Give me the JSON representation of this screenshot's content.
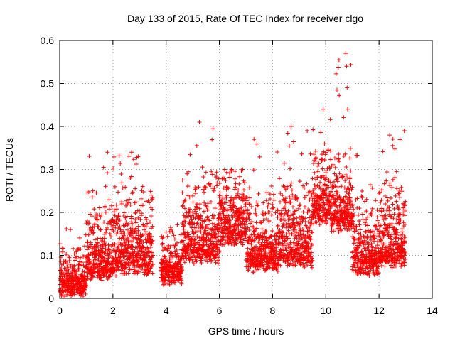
{
  "chart_data": {
    "type": "scatter",
    "title": "Day 133 of 2015, Rate Of TEC Index for receiver clgo",
    "xlabel": "GPS time / hours",
    "ylabel": "ROTI / TECUs",
    "xlim": [
      0,
      14
    ],
    "ylim": [
      0,
      0.6
    ],
    "x_ticks": [
      "0",
      "2",
      "4",
      "6",
      "8",
      "10",
      "12",
      "14"
    ],
    "y_ticks": [
      "0",
      "0.1",
      "0.2",
      "0.3",
      "0.4",
      "0.5",
      "0.6"
    ],
    "grid": true,
    "marker": "+",
    "series_color": "#ff0000",
    "data_segments": [
      {
        "x_start": 0.0,
        "x_end": 1.0,
        "base": 0.03,
        "spread": 0.06,
        "peak": 0.17
      },
      {
        "x_start": 1.0,
        "x_end": 2.0,
        "base": 0.07,
        "spread": 0.1,
        "peak": 0.34
      },
      {
        "x_start": 2.0,
        "x_end": 3.5,
        "base": 0.08,
        "spread": 0.12,
        "peak": 0.34
      },
      {
        "x_start": 3.8,
        "x_end": 4.6,
        "base": 0.06,
        "spread": 0.06,
        "peak": 0.19
      },
      {
        "x_start": 4.6,
        "x_end": 6.0,
        "base": 0.11,
        "spread": 0.12,
        "peak": 0.41
      },
      {
        "x_start": 6.0,
        "x_end": 7.0,
        "base": 0.15,
        "spread": 0.1,
        "peak": 0.3
      },
      {
        "x_start": 7.0,
        "x_end": 8.2,
        "base": 0.09,
        "spread": 0.1,
        "peak": 0.37
      },
      {
        "x_start": 8.2,
        "x_end": 9.5,
        "base": 0.1,
        "spread": 0.12,
        "peak": 0.4
      },
      {
        "x_start": 9.5,
        "x_end": 10.2,
        "base": 0.2,
        "spread": 0.1,
        "peak": 0.44
      },
      {
        "x_start": 10.2,
        "x_end": 11.0,
        "base": 0.18,
        "spread": 0.1,
        "peak": 0.57
      },
      {
        "x_start": 11.0,
        "x_end": 12.0,
        "base": 0.08,
        "spread": 0.1,
        "peak": 0.34
      },
      {
        "x_start": 12.0,
        "x_end": 13.0,
        "base": 0.1,
        "spread": 0.12,
        "peak": 0.39
      }
    ],
    "notable_points": [
      {
        "x": 10.75,
        "y": 0.57
      },
      {
        "x": 10.78,
        "y": 0.54
      },
      {
        "x": 10.8,
        "y": 0.49
      },
      {
        "x": 10.82,
        "y": 0.44
      },
      {
        "x": 9.9,
        "y": 0.44
      },
      {
        "x": 5.25,
        "y": 0.41
      },
      {
        "x": 8.7,
        "y": 0.4
      },
      {
        "x": 9.3,
        "y": 0.39
      },
      {
        "x": 12.95,
        "y": 0.39
      },
      {
        "x": 12.4,
        "y": 0.38
      },
      {
        "x": 7.3,
        "y": 0.37
      },
      {
        "x": 1.8,
        "y": 0.34
      },
      {
        "x": 2.7,
        "y": 0.34
      },
      {
        "x": 2.95,
        "y": 0.33
      }
    ]
  }
}
